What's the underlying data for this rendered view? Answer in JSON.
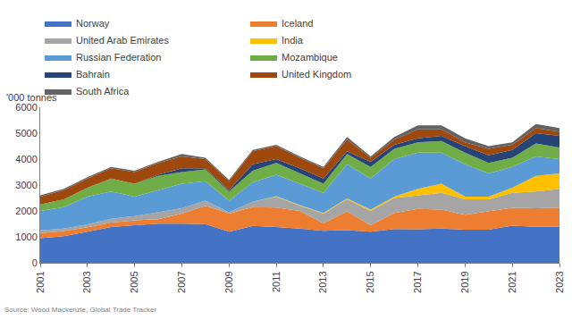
{
  "chart_data": {
    "type": "area",
    "stacked": true,
    "y_label": "'000 tonnes",
    "source": "Source: Wood Mackenzie, Global Trade Tracker",
    "x": [
      2001,
      2002,
      2003,
      2004,
      2005,
      2006,
      2007,
      2008,
      2009,
      2010,
      2011,
      2012,
      2013,
      2014,
      2015,
      2016,
      2017,
      2018,
      2019,
      2020,
      2021,
      2022,
      2023
    ],
    "series": [
      {
        "name": "Norway",
        "color": "#4472C4",
        "values": [
          950,
          1030,
          1200,
          1380,
          1450,
          1510,
          1510,
          1490,
          1200,
          1420,
          1380,
          1320,
          1230,
          1260,
          1200,
          1300,
          1290,
          1320,
          1280,
          1280,
          1430,
          1390,
          1400
        ]
      },
      {
        "name": "Iceland",
        "color": "#ED7D31",
        "values": [
          200,
          190,
          170,
          170,
          190,
          170,
          390,
          710,
          700,
          730,
          750,
          680,
          300,
          720,
          250,
          620,
          790,
          730,
          570,
          700,
          690,
          710,
          730
        ]
      },
      {
        "name": "United Arab Emirates",
        "color": "#A5A5A5",
        "values": [
          100,
          100,
          110,
          150,
          160,
          270,
          200,
          200,
          50,
          200,
          420,
          200,
          370,
          470,
          550,
          580,
          520,
          650,
          600,
          470,
          580,
          650,
          720
        ]
      },
      {
        "name": "India",
        "color": "#FFC000",
        "values": [
          0,
          0,
          0,
          0,
          0,
          0,
          0,
          0,
          0,
          0,
          20,
          20,
          20,
          30,
          50,
          50,
          250,
          350,
          100,
          100,
          200,
          600,
          600
        ]
      },
      {
        "name": "Russian Federation",
        "color": "#5B9BD5",
        "values": [
          750,
          830,
          1070,
          1050,
          750,
          850,
          950,
          750,
          450,
          750,
          830,
          830,
          780,
          1320,
          1200,
          1450,
          1400,
          1200,
          1250,
          900,
          800,
          750,
          550
        ]
      },
      {
        "name": "Mozambique",
        "color": "#70AD47",
        "values": [
          250,
          300,
          350,
          500,
          500,
          550,
          450,
          450,
          350,
          450,
          450,
          400,
          350,
          400,
          450,
          400,
          400,
          450,
          450,
          400,
          350,
          500,
          450
        ]
      },
      {
        "name": "Bahrain",
        "color": "#264478",
        "values": [
          0,
          0,
          0,
          0,
          0,
          50,
          150,
          50,
          50,
          250,
          150,
          200,
          200,
          100,
          200,
          150,
          150,
          200,
          250,
          300,
          300,
          400,
          450
        ]
      },
      {
        "name": "United Kingdom",
        "color": "#9E480E",
        "values": [
          300,
          350,
          350,
          400,
          450,
          450,
          450,
          350,
          350,
          500,
          500,
          400,
          400,
          450,
          150,
          200,
          350,
          250,
          150,
          250,
          200,
          200,
          150
        ]
      },
      {
        "name": "South Africa",
        "color": "#636363",
        "values": [
          50,
          50,
          50,
          50,
          50,
          50,
          100,
          50,
          50,
          50,
          50,
          50,
          50,
          100,
          50,
          100,
          150,
          150,
          150,
          100,
          100,
          150,
          150
        ]
      }
    ],
    "xlim": [
      2001,
      2023
    ],
    "xticks": [
      2001,
      2003,
      2005,
      2007,
      2009,
      2011,
      2013,
      2015,
      2017,
      2019,
      2021,
      2023
    ],
    "ylim": [
      0,
      6000
    ],
    "yticks": [
      0,
      1000,
      2000,
      3000,
      4000,
      5000,
      6000
    ],
    "grid": false,
    "legend": "top"
  }
}
